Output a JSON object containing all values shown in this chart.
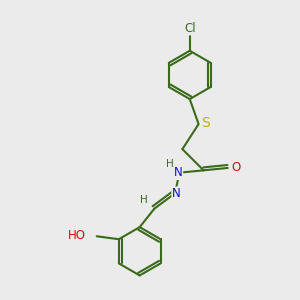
{
  "bg_color": "#ebebeb",
  "bond_color": "#3a6b1a",
  "bond_width": 1.5,
  "atom_colors": {
    "C": "#3a6b1a",
    "H": "#3a6b1a",
    "N": "#1010cc",
    "O": "#cc1010",
    "S": "#b8b800",
    "Cl": "#3a6b1a"
  },
  "font_size": 8.5
}
